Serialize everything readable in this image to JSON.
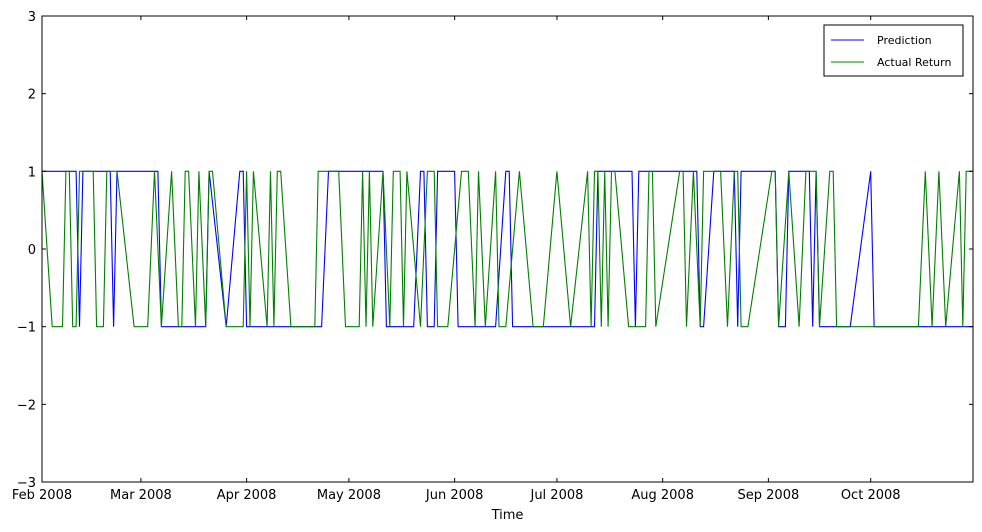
{
  "chart_data": {
    "type": "line",
    "title": "",
    "xlabel": "Time",
    "ylabel": "",
    "ylim": [
      -3,
      3
    ],
    "yticks": [
      -3,
      -2,
      -1,
      0,
      1,
      2,
      3
    ],
    "ytick_labels": [
      "−3",
      "−2",
      "−1",
      "0",
      "1",
      "2",
      "3"
    ],
    "xlim": [
      "2008-02-01",
      "2008-10-31"
    ],
    "xtick_dates": [
      "2008-02-01",
      "2008-03-01",
      "2008-04-01",
      "2008-05-01",
      "2008-06-01",
      "2008-07-01",
      "2008-08-01",
      "2008-09-01",
      "2008-10-01"
    ],
    "xtick_labels": [
      "Feb 2008",
      "Mar 2008",
      "Apr 2008",
      "May 2008",
      "Jun 2008",
      "Jul 2008",
      "Aug 2008",
      "Sep 2008",
      "Oct 2008"
    ],
    "grid": false,
    "legend_position": "top-right",
    "series": [
      {
        "name": "Prediction",
        "color": "#0000ff",
        "x": [
          "2008-02-01",
          "2008-02-11",
          "2008-02-12",
          "2008-02-13",
          "2008-02-21",
          "2008-02-22",
          "2008-02-23",
          "2008-03-06",
          "2008-03-07",
          "2008-03-20",
          "2008-03-21",
          "2008-03-26",
          "2008-03-30",
          "2008-03-31",
          "2008-04-01",
          "2008-04-02",
          "2008-04-03",
          "2008-04-23",
          "2008-04-25",
          "2008-04-30",
          "2008-05-11",
          "2008-05-12",
          "2008-05-20",
          "2008-05-22",
          "2008-05-23",
          "2008-05-24",
          "2008-05-26",
          "2008-05-27",
          "2008-06-01",
          "2008-06-02",
          "2008-06-13",
          "2008-06-16",
          "2008-06-17",
          "2008-06-18",
          "2008-06-20",
          "2008-07-12",
          "2008-07-13",
          "2008-07-23",
          "2008-07-24",
          "2008-07-25",
          "2008-07-28",
          "2008-07-29",
          "2008-08-11",
          "2008-08-12",
          "2008-08-13",
          "2008-08-16",
          "2008-08-17",
          "2008-08-19",
          "2008-08-22",
          "2008-08-23",
          "2008-08-24",
          "2008-09-03",
          "2008-09-04",
          "2008-09-06",
          "2008-09-07",
          "2008-09-13",
          "2008-09-14",
          "2008-09-15",
          "2008-09-16",
          "2008-09-25",
          "2008-10-01",
          "2008-10-02",
          "2008-10-31"
        ],
        "y": [
          1,
          1,
          -1,
          1,
          1,
          -1,
          1,
          1,
          -1,
          -1,
          1,
          -1,
          1,
          1,
          -1,
          -1,
          -1,
          -1,
          1,
          1,
          1,
          -1,
          -1,
          1,
          1,
          -1,
          -1,
          1,
          1,
          -1,
          -1,
          1,
          1,
          -1,
          -1,
          -1,
          1,
          1,
          -1,
          1,
          1,
          1,
          1,
          -1,
          -1,
          1,
          1,
          1,
          1,
          -1,
          1,
          1,
          -1,
          -1,
          1,
          1,
          -1,
          1,
          -1,
          -1,
          1,
          -1,
          -1
        ]
      },
      {
        "name": "Actual Return",
        "color": "#008000",
        "x": [
          "2008-02-01",
          "2008-02-04",
          "2008-02-07",
          "2008-02-08",
          "2008-02-09",
          "2008-02-10",
          "2008-02-11",
          "2008-02-12",
          "2008-02-16",
          "2008-02-17",
          "2008-02-18",
          "2008-02-19",
          "2008-02-20",
          "2008-02-21",
          "2008-02-22",
          "2008-02-23",
          "2008-02-28",
          "2008-03-03",
          "2008-03-05",
          "2008-03-07",
          "2008-03-10",
          "2008-03-12",
          "2008-03-13",
          "2008-03-14",
          "2008-03-15",
          "2008-03-17",
          "2008-03-18",
          "2008-03-20",
          "2008-03-21",
          "2008-03-22",
          "2008-03-26",
          "2008-03-31",
          "2008-04-01",
          "2008-04-02",
          "2008-04-03",
          "2008-04-07",
          "2008-04-08",
          "2008-04-09",
          "2008-04-10",
          "2008-04-11",
          "2008-04-14",
          "2008-04-21",
          "2008-04-22",
          "2008-04-24",
          "2008-04-27",
          "2008-04-28",
          "2008-04-30",
          "2008-05-04",
          "2008-05-05",
          "2008-05-06",
          "2008-05-07",
          "2008-05-08",
          "2008-05-11",
          "2008-05-13",
          "2008-05-14",
          "2008-05-16",
          "2008-05-17",
          "2008-05-18",
          "2008-05-22",
          "2008-05-24",
          "2008-05-26",
          "2008-05-27",
          "2008-05-30",
          "2008-06-03",
          "2008-06-05",
          "2008-06-07",
          "2008-06-08",
          "2008-06-10",
          "2008-06-13",
          "2008-06-14",
          "2008-06-16",
          "2008-06-20",
          "2008-06-24",
          "2008-06-27",
          "2008-07-01",
          "2008-07-05",
          "2008-07-10",
          "2008-07-11",
          "2008-07-12",
          "2008-07-13",
          "2008-07-14",
          "2008-07-15",
          "2008-07-16",
          "2008-07-17",
          "2008-07-18",
          "2008-07-22",
          "2008-07-27",
          "2008-07-28",
          "2008-07-29",
          "2008-07-30",
          "2008-08-06",
          "2008-08-07",
          "2008-08-08",
          "2008-08-10",
          "2008-08-12",
          "2008-08-13",
          "2008-08-18",
          "2008-08-20",
          "2008-08-22",
          "2008-08-23",
          "2008-08-24",
          "2008-08-26",
          "2008-09-02",
          "2008-09-03",
          "2008-09-04",
          "2008-09-07",
          "2008-09-10",
          "2008-09-12",
          "2008-09-15",
          "2008-09-16",
          "2008-09-19",
          "2008-09-20",
          "2008-09-21",
          "2008-10-15",
          "2008-10-17",
          "2008-10-19",
          "2008-10-21",
          "2008-10-23",
          "2008-10-27",
          "2008-10-28",
          "2008-10-29",
          "2008-10-31"
        ],
        "y": [
          1,
          -1,
          -1,
          1,
          1,
          -1,
          -1,
          1,
          1,
          -1,
          -1,
          -1,
          1,
          1,
          1,
          1,
          -1,
          -1,
          1,
          -1,
          1,
          -1,
          -1,
          1,
          1,
          -1,
          1,
          -1,
          1,
          1,
          -1,
          -1,
          1,
          -1,
          1,
          -1,
          1,
          -1,
          1,
          1,
          -1,
          -1,
          1,
          1,
          1,
          1,
          -1,
          -1,
          1,
          -1,
          1,
          -1,
          1,
          -1,
          1,
          1,
          -1,
          1,
          -1,
          1,
          1,
          -1,
          -1,
          1,
          1,
          -1,
          1,
          -1,
          1,
          -1,
          -1,
          1,
          -1,
          -1,
          1,
          -1,
          1,
          -1,
          1,
          1,
          -1,
          1,
          -1,
          1,
          1,
          -1,
          -1,
          1,
          1,
          -1,
          1,
          1,
          -1,
          1,
          -1,
          1,
          1,
          -1,
          1,
          1,
          -1,
          -1,
          1,
          1,
          -1,
          1,
          -1,
          1,
          1,
          -1,
          1,
          1,
          -1,
          -1,
          1,
          -1,
          1,
          -1,
          1,
          -1,
          1,
          1
        ]
      }
    ]
  }
}
